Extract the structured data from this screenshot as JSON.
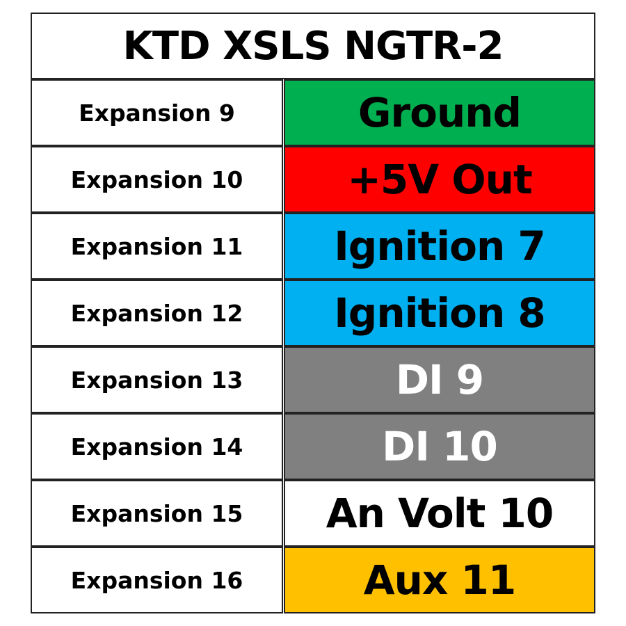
{
  "title": "KTD XSLS NGTR-2",
  "rows": [
    {
      "pin": "Expansion 9",
      "function": "Ground",
      "bg": "#00B050",
      "fg": "#000000"
    },
    {
      "pin": "Expansion 10",
      "function": "+5V Out",
      "bg": "#FF0000",
      "fg": "#000000"
    },
    {
      "pin": "Expansion 11",
      "function": "Ignition 7",
      "bg": "#00B0F0",
      "fg": "#000000"
    },
    {
      "pin": "Expansion 12",
      "function": "Ignition 8",
      "bg": "#00B0F0",
      "fg": "#000000"
    },
    {
      "pin": "Expansion 13",
      "function": "DI 9",
      "bg": "#808080",
      "fg": "#FFFFFF"
    },
    {
      "pin": "Expansion 14",
      "function": "DI 10",
      "bg": "#808080",
      "fg": "#FFFFFF"
    },
    {
      "pin": "Expansion 15",
      "function": "An Volt 10",
      "bg": "#FFFFFF",
      "fg": "#000000"
    },
    {
      "pin": "Expansion 16",
      "function": "Aux 11",
      "bg": "#FFC000",
      "fg": "#000000"
    }
  ]
}
